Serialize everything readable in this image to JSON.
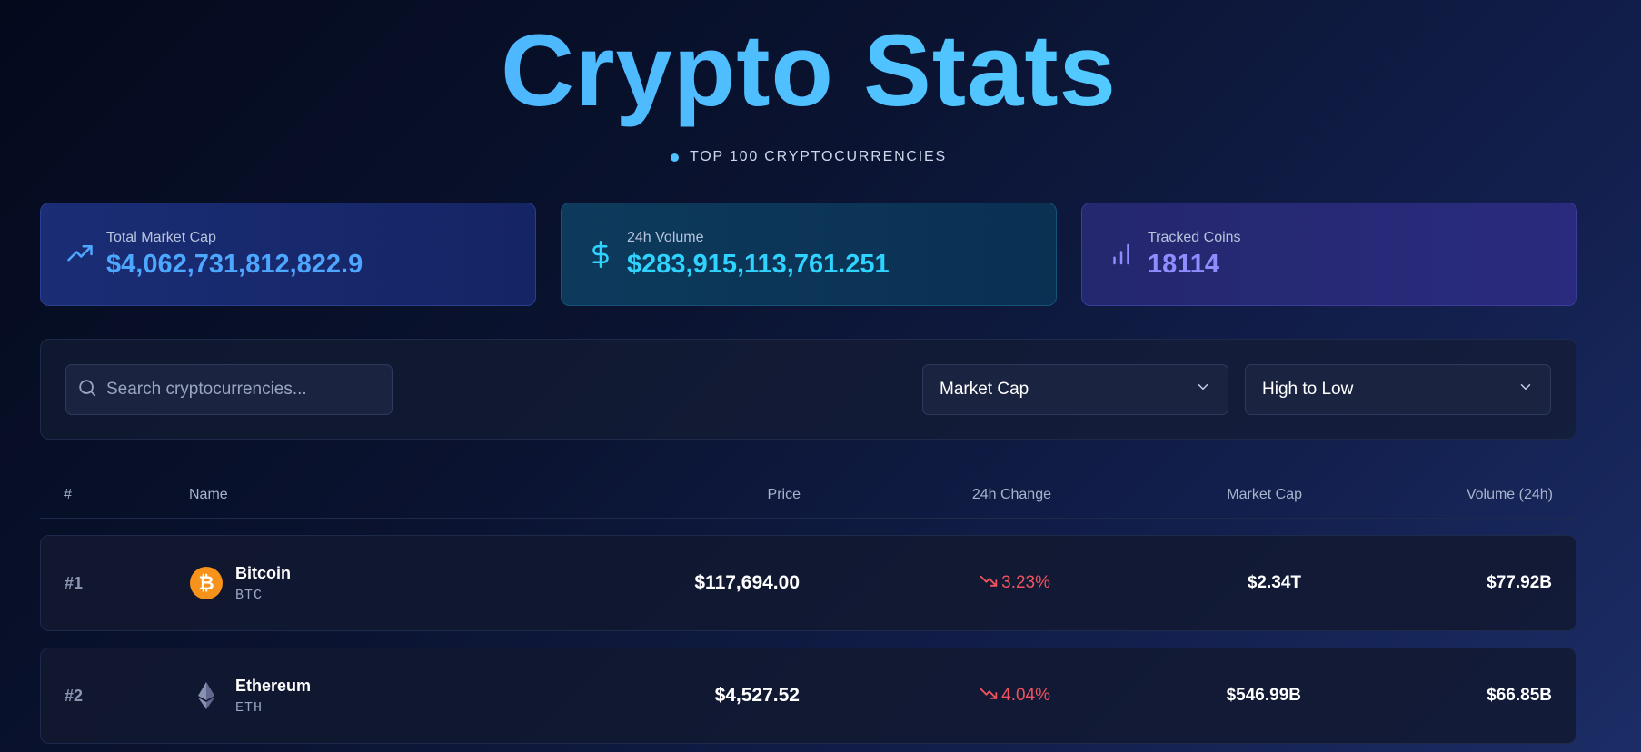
{
  "header": {
    "title": "Crypto Stats",
    "subtitle": "TOP 100 CRYPTOCURRENCIES"
  },
  "stats": [
    {
      "label": "Total Market Cap",
      "value": "$4,062,731,812,822.9",
      "icon": "trending-up-icon",
      "color": "#4ea7ff"
    },
    {
      "label": "24h Volume",
      "value": "$283,915,113,761.251",
      "icon": "dollar-icon",
      "color": "#2fd3ff"
    },
    {
      "label": "Tracked Coins",
      "value": "18114",
      "icon": "bar-chart-icon",
      "color": "#8f8cff"
    }
  ],
  "filters": {
    "search_placeholder": "Search cryptocurrencies...",
    "sort_field": "Market Cap",
    "sort_order": "High to Low"
  },
  "table": {
    "columns": [
      "#",
      "Name",
      "Price",
      "24h Change",
      "Market Cap",
      "Volume (24h)"
    ],
    "rows": [
      {
        "rank": "#1",
        "name": "Bitcoin",
        "symbol": "BTC",
        "icon": "bitcoin-icon",
        "price": "$117,694.00",
        "change": "3.23%",
        "market_cap": "$2.34T",
        "volume": "$77.92B"
      },
      {
        "rank": "#2",
        "name": "Ethereum",
        "symbol": "ETH",
        "icon": "ethereum-icon",
        "price": "$4,527.52",
        "change": "4.04%",
        "market_cap": "$546.99B",
        "volume": "$66.85B"
      }
    ]
  },
  "colors": {
    "negative": "#f0535f",
    "accent": "#4ec3ff"
  }
}
